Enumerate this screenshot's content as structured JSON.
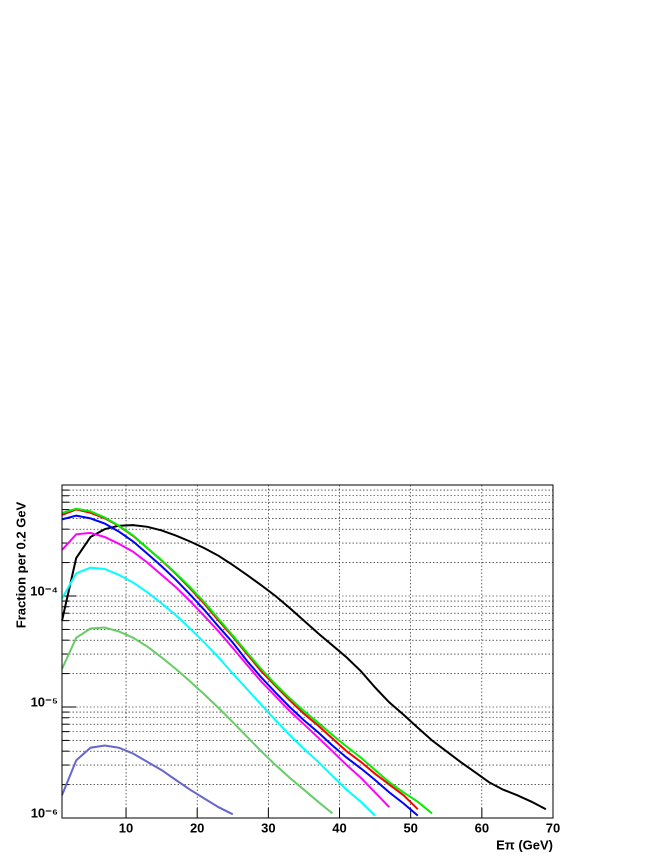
{
  "chart_data": {
    "type": "line",
    "xlabel": "Eπ (GeV)",
    "ylabel": "Fraction per 0.2 GeV",
    "log_y": true,
    "grid": true,
    "xlim": [
      1,
      70
    ],
    "xticks": [
      10,
      20,
      30,
      40,
      50,
      60,
      70
    ],
    "ylim": [
      1e-06,
      0.001
    ],
    "yticks": [
      {
        "value": 1e-06,
        "label": "10⁻⁶"
      },
      {
        "value": 1e-05,
        "label": "10⁻⁵"
      },
      {
        "value": 0.0001,
        "label": "10⁻⁴"
      }
    ],
    "yminorticks": [
      2e-06,
      3e-06,
      4e-06,
      5e-06,
      6e-06,
      7e-06,
      8e-06,
      9e-06,
      2e-05,
      3e-05,
      4e-05,
      5e-05,
      6e-05,
      7e-05,
      8e-05,
      9e-05,
      0.0002,
      0.0003,
      0.0004,
      0.0005,
      0.0006,
      0.0007,
      0.0008,
      0.0009
    ],
    "x": [
      1,
      3,
      5,
      7,
      9,
      11,
      13,
      15,
      17,
      19,
      21,
      23,
      25,
      27,
      29,
      31,
      33,
      35,
      37,
      39,
      41,
      43,
      45,
      47,
      49,
      51,
      53,
      55,
      57,
      59,
      61,
      63,
      65,
      67,
      69
    ],
    "series": [
      {
        "color": "#000000",
        "values": [
          6e-05,
          0.00022,
          0.00034,
          0.0004,
          0.00043,
          0.000435,
          0.00042,
          0.00039,
          0.00035,
          0.00031,
          0.00027,
          0.00023,
          0.00019,
          0.000155,
          0.000125,
          0.0001,
          7.8e-05,
          6e-05,
          4.6e-05,
          3.6e-05,
          2.8e-05,
          2.1e-05,
          1.5e-05,
          1.1e-05,
          8.5e-06,
          6.5e-06,
          5e-06,
          4e-06,
          3.2e-06,
          2.6e-06,
          2.1e-06,
          1.8e-06,
          1.6e-06,
          1.4e-06,
          1.2e-06
        ]
      },
      {
        "color": "#6666cc",
        "values": [
          1.6e-06,
          3.3e-06,
          4.3e-06,
          4.5e-06,
          4.3e-06,
          3.8e-06,
          3.2e-06,
          2.7e-06,
          2.2e-06,
          1.8e-06,
          1.5e-06,
          1.25e-06,
          1.08e-06,
          null,
          null,
          null,
          null,
          null,
          null,
          null,
          null,
          null,
          null,
          null,
          null,
          null,
          null,
          null,
          null,
          null,
          null,
          null,
          null,
          null,
          null
        ]
      },
      {
        "color": "#66cc66",
        "values": [
          2.2e-05,
          4.2e-05,
          5.1e-05,
          5.2e-05,
          4.8e-05,
          4.2e-05,
          3.5e-05,
          2.8e-05,
          2.2e-05,
          1.7e-05,
          1.3e-05,
          9.8e-06,
          7.3e-06,
          5.4e-06,
          4e-06,
          3e-06,
          2.3e-06,
          1.8e-06,
          1.4e-06,
          1.1e-06,
          null,
          null,
          null,
          null,
          null,
          null,
          null,
          null,
          null,
          null,
          null,
          null,
          null,
          null,
          null
        ]
      },
      {
        "color": "#00ffff",
        "values": [
          9.5e-05,
          0.00016,
          0.00018,
          0.000175,
          0.000155,
          0.000132,
          0.000108,
          8.6e-05,
          6.7e-05,
          5.1e-05,
          3.8e-05,
          2.8e-05,
          2e-05,
          1.45e-05,
          1.05e-05,
          7.6e-06,
          5.6e-06,
          4.2e-06,
          3.2e-06,
          2.4e-06,
          1.8e-06,
          1.4e-06,
          1.05e-06,
          null,
          null,
          null,
          null,
          null,
          null,
          null,
          null,
          null,
          null,
          null,
          null
        ]
      },
      {
        "color": "#ff00ff",
        "values": [
          0.00026,
          0.00036,
          0.00037,
          0.00034,
          0.000295,
          0.00025,
          0.0002,
          0.000155,
          0.00012,
          9e-05,
          6.6e-05,
          4.8e-05,
          3.4e-05,
          2.4e-05,
          1.7e-05,
          1.25e-05,
          9.2e-06,
          7e-06,
          5.3e-06,
          4e-06,
          3e-06,
          2.3e-06,
          1.7e-06,
          1.25e-06,
          null,
          null,
          null,
          null,
          null,
          null,
          null,
          null,
          null,
          null,
          null
        ]
      },
      {
        "color": "#0000ff",
        "values": [
          0.00049,
          0.00053,
          0.0005,
          0.00045,
          0.00038,
          0.00031,
          0.00024,
          0.000185,
          0.00014,
          0.000103,
          7.5e-05,
          5.3e-05,
          3.8e-05,
          2.6e-05,
          1.85e-05,
          1.35e-05,
          1e-05,
          7.6e-06,
          5.9e-06,
          4.5e-06,
          3.5e-06,
          2.8e-06,
          2.2e-06,
          1.7e-06,
          1.35e-06,
          1.05e-06,
          null,
          null,
          null,
          null,
          null,
          null,
          null,
          null,
          null
        ]
      },
      {
        "color": "#ff0000",
        "values": [
          0.000537,
          0.000603,
          0.000562,
          0.000501,
          0.000427,
          0.000347,
          0.000269,
          0.000209,
          0.000158,
          0.000117,
          8.5e-05,
          6e-05,
          4.3e-05,
          3e-05,
          2.1e-05,
          1.55e-05,
          1.15e-05,
          8.7e-06,
          6.8e-06,
          5.2e-06,
          4e-06,
          3.2e-06,
          2.5e-06,
          2e-06,
          1.6e-06,
          1.2e-06,
          null,
          null,
          null,
          null,
          null,
          null,
          null,
          null,
          null
        ]
      },
      {
        "color": "#00ee00",
        "values": [
          0.00056,
          0.00061,
          0.00058,
          0.00051,
          0.00043,
          0.00035,
          0.00027,
          0.00021,
          0.00016,
          0.00012,
          8.8e-05,
          6.2e-05,
          4.4e-05,
          3.1e-05,
          2.2e-05,
          1.6e-05,
          1.2e-05,
          9.2e-06,
          7.2e-06,
          5.6e-06,
          4.4e-06,
          3.5e-06,
          2.7e-06,
          2.1e-06,
          1.7e-06,
          1.4e-06,
          1.1e-06,
          null,
          null,
          null,
          null,
          null,
          null,
          null,
          null
        ]
      }
    ]
  }
}
